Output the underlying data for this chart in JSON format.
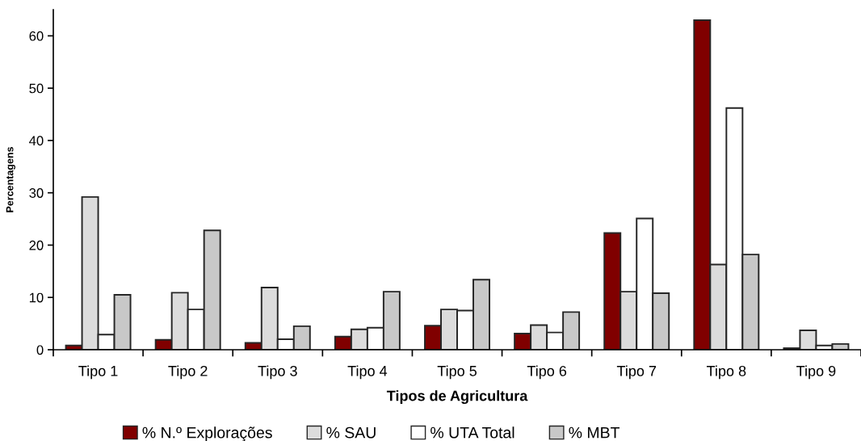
{
  "chart_data": {
    "type": "bar",
    "xlabel": "Tipos de Agricultura",
    "ylabel": "Percentagens",
    "categories": [
      "Tipo 1",
      "Tipo 2",
      "Tipo 3",
      "Tipo 4",
      "Tipo 5",
      "Tipo 6",
      "Tipo 7",
      "Tipo 8",
      "Tipo 9"
    ],
    "series": [
      {
        "name": "% N.º Explorações",
        "color": "#800000",
        "values": [
          0.8,
          1.9,
          1.3,
          2.5,
          4.6,
          3.1,
          22.3,
          63.0,
          0.3
        ]
      },
      {
        "name": "% SAU",
        "color": "#dcdcdc",
        "values": [
          29.2,
          10.9,
          11.9,
          3.9,
          7.7,
          4.7,
          11.1,
          16.3,
          3.7
        ]
      },
      {
        "name": "% UTA Total",
        "color": "#ffffff",
        "values": [
          2.9,
          7.7,
          2.0,
          4.2,
          7.5,
          3.3,
          25.1,
          46.2,
          0.8
        ]
      },
      {
        "name": "% MBT",
        "color": "#c8c8c8",
        "values": [
          10.5,
          22.8,
          4.5,
          11.1,
          13.4,
          7.2,
          10.8,
          18.2,
          1.1
        ]
      }
    ],
    "ylim": [
      0,
      65
    ],
    "yticks": [
      0,
      10,
      20,
      30,
      40,
      50,
      60
    ],
    "grid": false,
    "legend": "bottom"
  }
}
